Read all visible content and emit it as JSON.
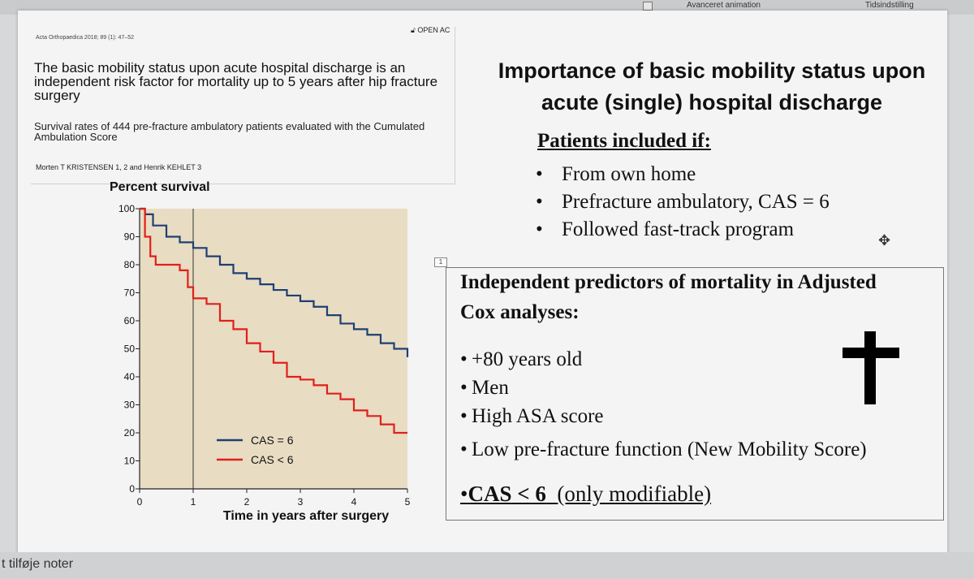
{
  "ribbon": {
    "item1": "Avanceret animation",
    "item2": "Tidsindstilling"
  },
  "notes_placeholder": "t tilføje noter",
  "paper": {
    "journal": "Acta Orthopaedica 2018; 89 (1): 47–52",
    "open_access": "OPEN AC",
    "title": "The basic mobility status upon acute hospital discharge is an independent risk factor for mortality up to 5 years after hip fracture surgery",
    "subtitle": "Survival rates of 444 pre-fracture ambulatory patients evaluated with the Cumulated Ambulation Score",
    "authors": "Morten T KRISTENSEN 1, 2 and Henrik KEHLET 3"
  },
  "chart_data": {
    "type": "line",
    "title": "Percent survival",
    "xlabel": "Time in years after surgery",
    "ylabel": "",
    "xlim": [
      0,
      5
    ],
    "ylim": [
      0,
      100
    ],
    "xticks": [
      0,
      1,
      2,
      3,
      4,
      5
    ],
    "yticks": [
      0,
      10,
      20,
      30,
      40,
      50,
      60,
      70,
      80,
      90,
      100
    ],
    "reference_line_x": 1,
    "legend_position": "bottom-left",
    "series": [
      {
        "name": "CAS = 6",
        "color": "#1f3f73",
        "x": [
          0,
          0.1,
          0.25,
          0.5,
          0.75,
          1,
          1.25,
          1.5,
          1.75,
          2,
          2.25,
          2.5,
          2.75,
          3,
          3.25,
          3.5,
          3.75,
          4,
          4.25,
          4.5,
          4.75,
          5
        ],
        "y": [
          100,
          98,
          94,
          90,
          88,
          86,
          83,
          80,
          77,
          75,
          73,
          71,
          69,
          67,
          65,
          62,
          59,
          57,
          55,
          52,
          50,
          47
        ]
      },
      {
        "name": "CAS < 6",
        "color": "#e0201a",
        "x": [
          0,
          0.1,
          0.2,
          0.3,
          0.5,
          0.75,
          0.9,
          1,
          1.25,
          1.5,
          1.75,
          2,
          2.25,
          2.5,
          2.75,
          3,
          3.25,
          3.5,
          3.75,
          4,
          4.25,
          4.5,
          4.75,
          5
        ],
        "y": [
          100,
          90,
          83,
          80,
          80,
          78,
          72,
          68,
          66,
          60,
          57,
          52,
          49,
          45,
          40,
          39,
          37,
          34,
          32,
          28,
          26,
          23,
          20,
          20
        ]
      }
    ]
  },
  "heading": "Importance of basic mobility status upon acute (single) hospital discharge",
  "inclusion": {
    "title": "Patients included if:",
    "items": [
      "From own home",
      "Prefracture ambulatory, CAS = 6",
      "Followed fast-track program"
    ]
  },
  "selection_marker": "1",
  "predictors": {
    "title": "Independent predictors of mortality in Adjusted Cox analyses:",
    "items": [
      "+80 years old",
      "Men",
      "High ASA score",
      "Low pre-fracture function (New Mobility Score)"
    ],
    "last": {
      "main": "CAS < 6",
      "note": "(only modifiable)"
    }
  },
  "colors": {
    "plot_background": "#e8dcc3",
    "cas6": "#1f3f73",
    "cas_lt6": "#e0201a"
  }
}
